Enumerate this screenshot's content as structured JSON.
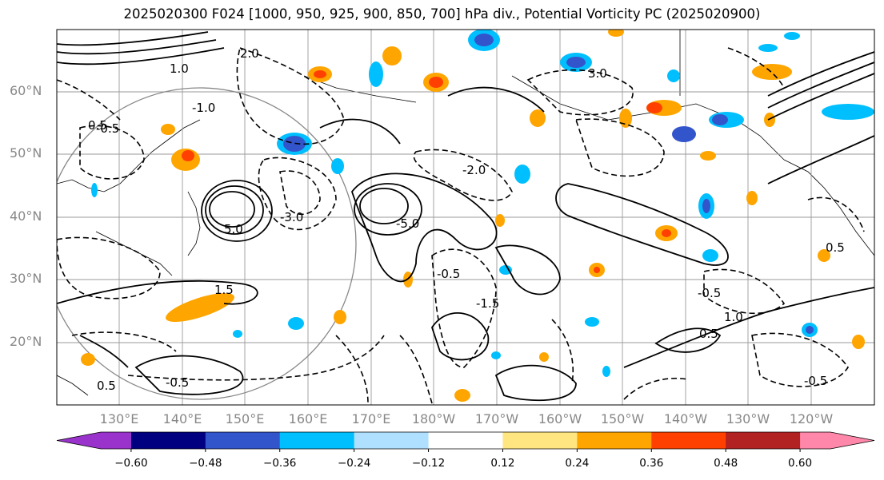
{
  "title": "2025020300 F024 [1000, 950, 925, 900, 850, 700] hPa div., Potential Vorticity PC (2025020900)",
  "lat_labels": [
    "60°N",
    "50°N",
    "40°N",
    "30°N",
    "20°N"
  ],
  "lon_labels": [
    "130°E",
    "140°E",
    "150°E",
    "160°E",
    "170°E",
    "180°W",
    "170°W",
    "160°W",
    "150°W",
    "140°W",
    "130°W",
    "120°W"
  ],
  "colorbar": {
    "ticks": [
      "−0.60",
      "−0.48",
      "−0.36",
      "−0.24",
      "−0.12",
      "0.12",
      "0.24",
      "0.36",
      "0.48",
      "0.60"
    ],
    "colors": [
      "#9933cc",
      "#000080",
      "#3355cc",
      "#00bfff",
      "#b0e0ff",
      "#ffffff",
      "#ffe680",
      "#ffa500",
      "#ff4000",
      "#b22222",
      "#ff88aa"
    ]
  },
  "contour_labels": [
    "1.0",
    "0.5",
    "-0.5",
    "-1.0",
    "1.5",
    "-1.5",
    "2.0",
    "-2.0",
    "3.0",
    "-3.0",
    "5.0",
    "-5.0",
    "-0.5",
    "0.5",
    "1.0",
    "-0.5",
    "0.5",
    "-0.5",
    "0.5",
    "-0.5"
  ]
}
